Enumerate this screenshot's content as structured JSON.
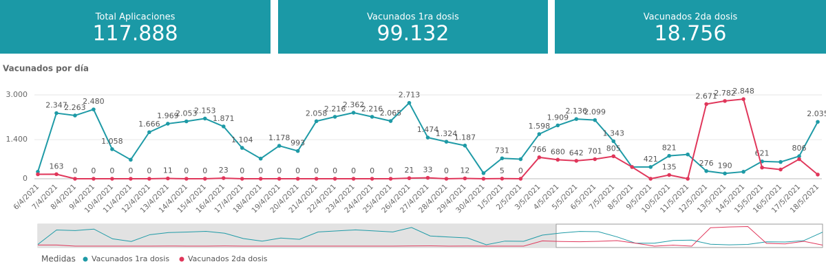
{
  "kpis": [
    {
      "title": "Total Aplicaciones",
      "value": "117.888"
    },
    {
      "title": "Vacunados 1ra dosis",
      "value": "99.132"
    },
    {
      "title": "Vacunados 2da dosis",
      "value": "18.756"
    }
  ],
  "chart_data": {
    "type": "line",
    "title": "Vacunados por día",
    "categories": [
      "6/4/2021",
      "7/4/2021",
      "8/4/2021",
      "9/4/2021",
      "10/4/2021",
      "11/4/2021",
      "12/4/2021",
      "13/4/2021",
      "14/4/2021",
      "15/4/2021",
      "16/4/2021",
      "17/4/2021",
      "18/4/2021",
      "19/4/2021",
      "20/4/2021",
      "21/4/2021",
      "22/4/2021",
      "23/4/2021",
      "24/4/2021",
      "25/4/2021",
      "26/4/2021",
      "27/4/2021",
      "28/4/2021",
      "29/4/2021",
      "30/4/2021",
      "1/5/2021",
      "2/5/2021",
      "3/5/2021",
      "4/5/2021",
      "5/5/2021",
      "6/5/2021",
      "7/5/2021",
      "8/5/2021",
      "9/5/2021",
      "10/5/2021",
      "11/5/2021",
      "12/5/2021",
      "13/5/2021",
      "14/5/2021",
      "15/5/2021",
      "16/5/2021",
      "17/5/2021",
      "18/5/2021"
    ],
    "ylim": [
      0,
      3000
    ],
    "yticks": [
      0,
      {
        "value": 1400,
        "label": "1.400"
      },
      {
        "value": 3000,
        "label": "3.000"
      }
    ],
    "grid": true,
    "legend_title": "Medidas",
    "legend_position": "bottom-left",
    "series": [
      {
        "name": "Vacunados 1ra dosis",
        "color": "#1e9aa6",
        "values": [
          250,
          2347,
          2263,
          2480,
          1058,
          680,
          1666,
          1969,
          2053,
          2153,
          1871,
          1104,
          720,
          1178,
          993,
          2058,
          2216,
          2362,
          2216,
          2065,
          2713,
          1474,
          1324,
          1187,
          200,
          731,
          700,
          1598,
          1909,
          2136,
          2099,
          1343,
          420,
          421,
          821,
          870,
          276,
          190,
          250,
          621,
          600,
          806,
          2035
        ],
        "value_labels": [
          null,
          "2.347",
          "2.263",
          "2.480",
          "1.058",
          null,
          "1.666",
          "1.969",
          "2.053",
          "2.153",
          "1.871",
          "1.104",
          null,
          "1.178",
          "993",
          "2.058",
          "2.216",
          "2.362",
          "2.216",
          "2.065",
          "2.713",
          "1.474",
          "1.324",
          "1.187",
          null,
          "731",
          null,
          "1.598",
          "1.909",
          "2.136",
          "2.099",
          "1.343",
          null,
          "421",
          "821",
          null,
          "276",
          "190",
          null,
          "621",
          null,
          "806",
          "2.035"
        ]
      },
      {
        "name": "Vacunados 2da dosis",
        "color": "#e0365a",
        "values": [
          160,
          163,
          0,
          0,
          0,
          0,
          0,
          11,
          0,
          0,
          23,
          0,
          0,
          0,
          0,
          0,
          0,
          0,
          0,
          0,
          21,
          33,
          0,
          12,
          0,
          5,
          0,
          766,
          680,
          642,
          701,
          805,
          420,
          0,
          135,
          0,
          2671,
          2782,
          2848,
          400,
          330,
          700,
          150
        ],
        "value_labels": [
          null,
          "163",
          "0",
          "0",
          "0",
          "0",
          "0",
          "11",
          "0",
          "0",
          "23",
          "0",
          "0",
          "0",
          "0",
          "0",
          "0",
          "0",
          "0",
          "0",
          "21",
          "33",
          "0",
          "12",
          null,
          "5",
          "0",
          "766",
          "680",
          "642",
          "701",
          "805",
          null,
          null,
          "135",
          null,
          "2.671",
          "2.782",
          "2.848",
          null,
          null,
          null,
          null
        ]
      }
    ]
  }
}
